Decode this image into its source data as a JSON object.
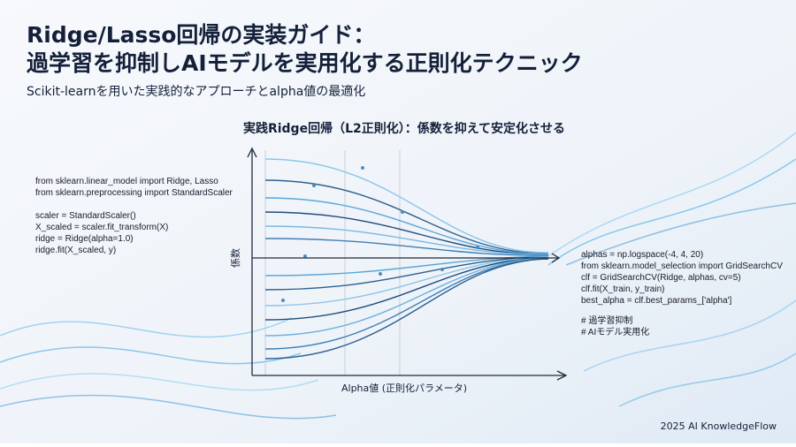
{
  "header": {
    "title": [
      "Ridge/Lasso回帰の実装ガイド：",
      "過学習を抑制しAIモデルを実用化する正則化テクニック"
    ],
    "subtitle": "Scikit-learnを用いた実践的なアプローチとalpha値の最適化"
  },
  "diagram": {
    "title": "実践Ridge回帰（L2正則化）：係数を抑えて安定化させる",
    "y_label": "係数",
    "x_label": "Alpha値 (正則化パラメータ)"
  },
  "code_left": [
    [
      "from sklearn.linear_model import Ridge, Lasso",
      "from sklearn.preprocessing import StandardScaler"
    ],
    [
      "scaler = StandardScaler()",
      "X_scaled = scaler.fit_transform(X)",
      "ridge = Ridge(alpha=1.0)",
      "ridge.fit(X_scaled, y)"
    ]
  ],
  "code_right": [
    [
      "alphas = np.logspace(-4, 4, 20)",
      "from sklearn.model_selection import GridSearchCV",
      "clf = GridSearchCV(Ridge, alphas, cv=5)",
      "clf.fit(X_train, y_train)",
      "best_alpha = clf.best_params_['alpha']"
    ],
    [
      "# 過学習抑制",
      "# AIモデル実用化"
    ]
  ],
  "footer": "2025 AI KnowledgeFlow"
}
